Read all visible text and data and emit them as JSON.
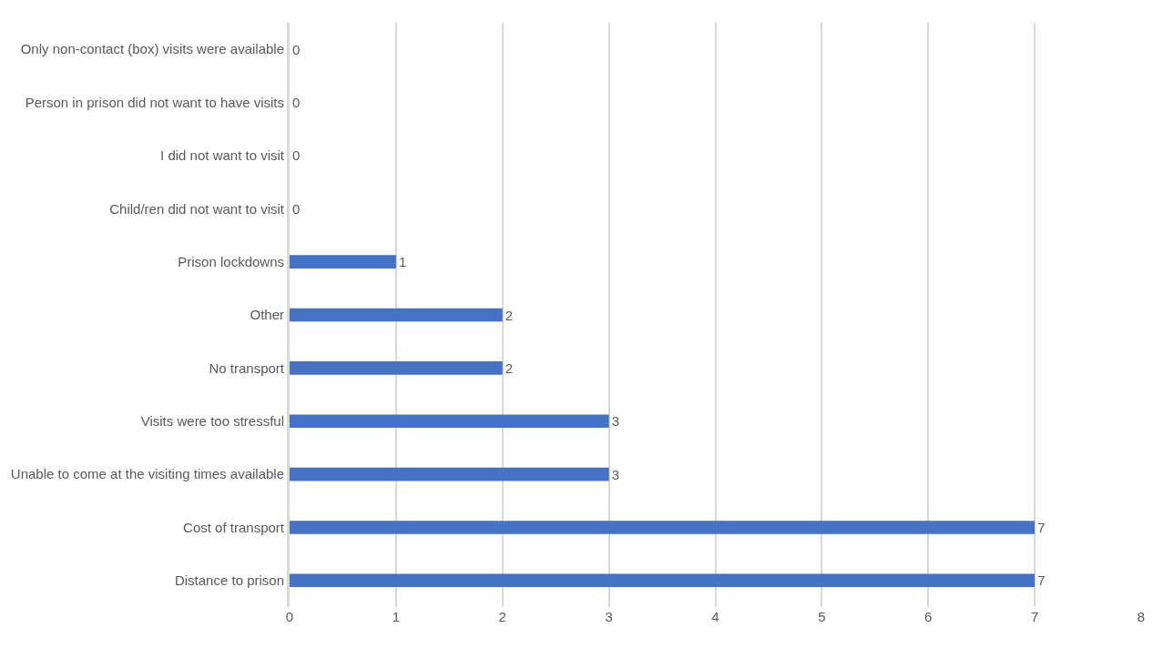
{
  "chart_data": {
    "type": "bar",
    "orientation": "horizontal",
    "categories": [
      "Only non-contact (box) visits were available",
      "Person in prison did not want to have visits",
      "I did not want to visit",
      "Child/ren did not want to visit",
      "Prison lockdowns",
      "Other",
      "No transport",
      "Visits were too stressful",
      "Unable to come at the visiting times available",
      "Cost of transport",
      "Distance to prison"
    ],
    "values": [
      0,
      0,
      0,
      0,
      1,
      2,
      2,
      3,
      3,
      7,
      7
    ],
    "color": "#4472c4",
    "xlim": [
      0,
      8
    ],
    "xticks": [
      0,
      1,
      2,
      3,
      4,
      5,
      6,
      7,
      8
    ],
    "grid": "x",
    "data_labels": true,
    "legend": false
  }
}
